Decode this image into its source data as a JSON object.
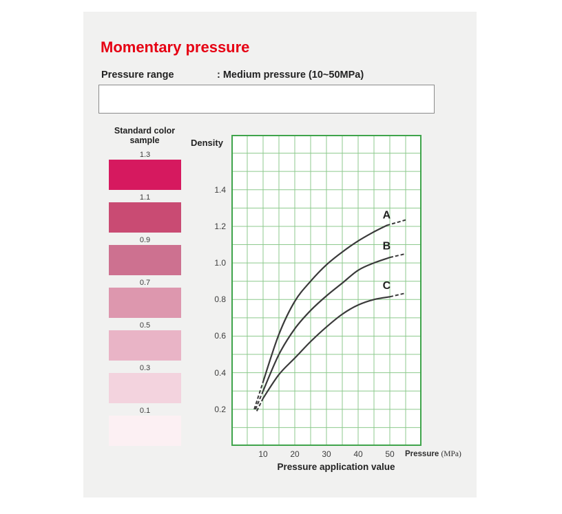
{
  "colors": {
    "card_bg": "#f1f1f0",
    "title_red": "#e60013",
    "text_dark": "#222222"
  },
  "header": {
    "title": "Momentary pressure",
    "range_label": "Pressure range",
    "range_value": ": Medium pressure (10~50MPa)"
  },
  "color_samples": {
    "heading_line1": "Standard color",
    "heading_line2": "sample",
    "items": [
      {
        "density": "1.3",
        "color": "#d6195f"
      },
      {
        "density": "1.1",
        "color": "#c94b73"
      },
      {
        "density": "0.9",
        "color": "#cd7190"
      },
      {
        "density": "0.7",
        "color": "#dd97ae"
      },
      {
        "density": "0.5",
        "color": "#e9b4c6"
      },
      {
        "density": "0.3",
        "color": "#f3d3de"
      },
      {
        "density": "0.1",
        "color": "#fcf0f3"
      }
    ]
  },
  "chart_data": {
    "type": "line",
    "ylabel": "Density",
    "xlabel": "Pressure application value",
    "x_unit_bold": "Pressure",
    "x_unit_paren": "(MPa)",
    "xlim": [
      0,
      60
    ],
    "ylim": [
      0,
      1.7
    ],
    "x_grid_step": 5,
    "y_grid_step": 0.1,
    "x_ticks": [
      10,
      20,
      30,
      40,
      50
    ],
    "y_ticks": [
      0.2,
      0.4,
      0.6,
      0.8,
      1.0,
      1.2,
      1.4
    ],
    "grid_color": "#8cc98c",
    "border_color": "#3fa44b",
    "curve_color": "#3a3a3a",
    "label_color": "#222222",
    "series": [
      {
        "name": "A",
        "label_pos": [
          49,
          1.26
        ],
        "dash_start": [
          [
            7.2,
            0.2
          ],
          [
            10,
            0.35
          ]
        ],
        "solid": [
          [
            10,
            0.35
          ],
          [
            15,
            0.61
          ],
          [
            20,
            0.79
          ],
          [
            25,
            0.9
          ],
          [
            30,
            0.99
          ],
          [
            35,
            1.06
          ],
          [
            40,
            1.12
          ],
          [
            45,
            1.17
          ],
          [
            49,
            1.205
          ]
        ],
        "dash_end": [
          [
            49,
            1.205
          ],
          [
            55,
            1.235
          ]
        ]
      },
      {
        "name": "B",
        "label_pos": [
          49,
          1.09
        ],
        "dash_start": [
          [
            7.6,
            0.2
          ],
          [
            10,
            0.3
          ]
        ],
        "solid": [
          [
            10,
            0.3
          ],
          [
            15,
            0.5
          ],
          [
            20,
            0.64
          ],
          [
            25,
            0.74
          ],
          [
            30,
            0.82
          ],
          [
            35,
            0.89
          ],
          [
            40,
            0.96
          ],
          [
            45,
            1.0
          ],
          [
            50,
            1.03
          ]
        ],
        "dash_end": [
          [
            50,
            1.03
          ],
          [
            55,
            1.05
          ]
        ]
      },
      {
        "name": "C",
        "label_pos": [
          49,
          0.875
        ],
        "dash_start": [
          [
            8.0,
            0.19
          ],
          [
            10,
            0.26
          ]
        ],
        "solid": [
          [
            10,
            0.26
          ],
          [
            15,
            0.39
          ],
          [
            20,
            0.48
          ],
          [
            25,
            0.57
          ],
          [
            30,
            0.65
          ],
          [
            35,
            0.72
          ],
          [
            40,
            0.77
          ],
          [
            45,
            0.8
          ],
          [
            50,
            0.815
          ]
        ],
        "dash_end": [
          [
            50,
            0.815
          ],
          [
            55,
            0.835
          ]
        ]
      }
    ]
  }
}
